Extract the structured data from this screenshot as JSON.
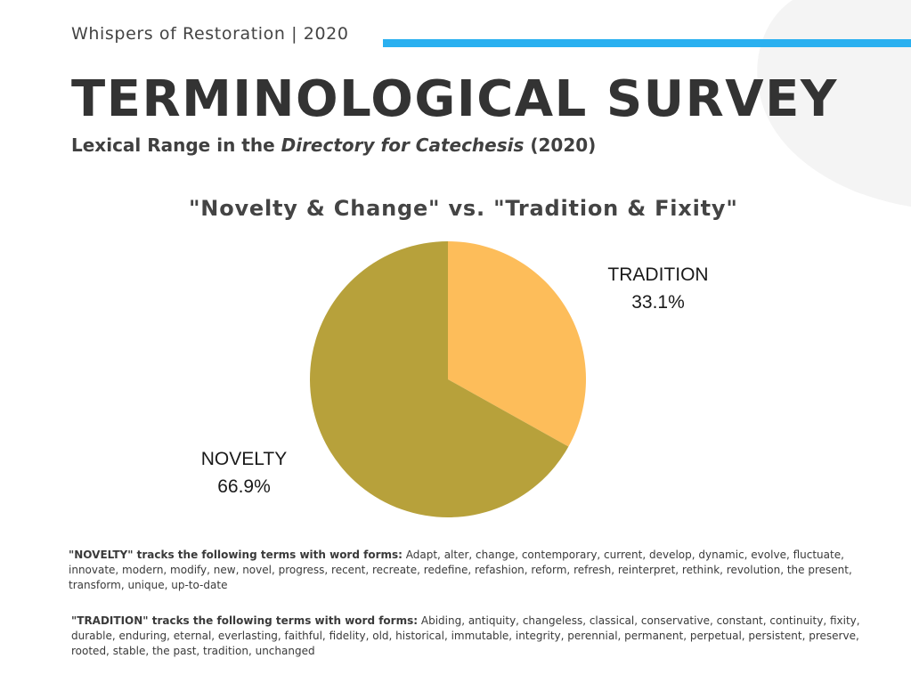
{
  "header": {
    "series_line": "Whispers of Restoration | 2020",
    "title": "TERMINOLOGICAL SURVEY",
    "subtitle_prefix": "Lexical Range in the ",
    "subtitle_italic": "Directory for Catechesis",
    "subtitle_suffix": " (2020)"
  },
  "colors": {
    "accent": "#2ab0f0",
    "tradition": "#fdbd5a",
    "novelty": "#b7a13b",
    "background_shape": "#f4f4f4"
  },
  "chart_data": {
    "type": "pie",
    "title": "\"Novelty & Change\" vs. \"Tradition & Fixity\"",
    "slices": [
      {
        "name": "TRADITION",
        "value": 33.1,
        "label": "33.1%",
        "color": "#fdbd5a"
      },
      {
        "name": "NOVELTY",
        "value": 66.9,
        "label": "66.9%",
        "color": "#b7a13b"
      }
    ],
    "start_angle": "12 o'clock, clockwise",
    "legend": "none (direct labels)"
  },
  "notes": {
    "novelty_lead": "\"NOVELTY\" tracks the following terms with word forms:",
    "novelty_terms": " Adapt, alter, change, contemporary, current, develop, dynamic, evolve, fluctuate, innovate, modern, modify, new, novel, progress, recent, recreate, redefine, refashion, reform, refresh, reinterpret, rethink, revolution, the present, transform, unique, up-to-date",
    "tradition_lead": "\"TRADITION\" tracks the following terms with word forms:",
    "tradition_terms": " Abiding, antiquity, changeless, classical, conservative, constant, continuity, fixity, durable, enduring, eternal, everlasting, faithful, fidelity, old, historical, immutable, integrity, perennial, permanent, perpetual, persistent, preserve, rooted, stable, the past, tradition, unchanged"
  }
}
